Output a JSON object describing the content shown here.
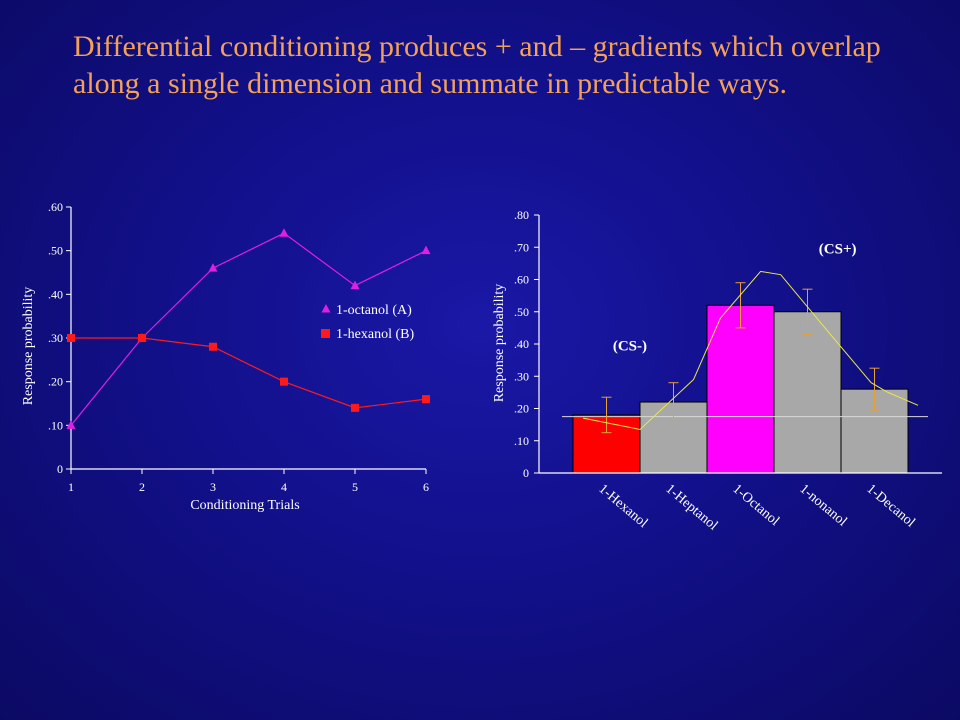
{
  "slide": {
    "title": "Differential conditioning produces + and – gradients which overlap along a single dimension and summate in predictable ways."
  },
  "chart_data": [
    {
      "type": "line",
      "xlabel": "Conditioning Trials",
      "ylabel": "Response probability",
      "x": [
        1,
        2,
        3,
        4,
        5,
        6
      ],
      "x_ticks": [
        "1",
        "2",
        "3",
        "4",
        "5",
        "6"
      ],
      "y_ticks": [
        "0",
        ".10",
        ".20",
        ".30",
        ".40",
        ".50",
        ".60"
      ],
      "ylim": [
        0,
        0.6
      ],
      "legend_position": "right",
      "series": [
        {
          "name": "1-octanol (A)",
          "color": "#e020e0",
          "marker": "triangle",
          "values": [
            0.1,
            0.3,
            0.46,
            0.54,
            0.42,
            0.5
          ]
        },
        {
          "name": "1-hexanol (B)",
          "color": "#ff1a1a",
          "marker": "square",
          "values": [
            0.3,
            0.3,
            0.28,
            0.2,
            0.14,
            0.16
          ]
        }
      ]
    },
    {
      "type": "bar",
      "xlabel": "",
      "ylabel": "Response probability",
      "categories": [
        "1-Hexanol",
        "1-Heptanol",
        "1-Octanol",
        "1-nonanol",
        "1-Decanol"
      ],
      "values": [
        0.18,
        0.22,
        0.52,
        0.5,
        0.26
      ],
      "error": [
        0.055,
        0.06,
        0.07,
        0.07,
        0.065
      ],
      "bar_colors": [
        "#ff0000",
        "#a8a8a8",
        "#ff00ff",
        "#a8a8a8",
        "#a8a8a8"
      ],
      "y_ticks": [
        "0",
        ".10",
        ".20",
        ".30",
        ".40",
        ".50",
        ".60",
        ".70",
        ".80"
      ],
      "ylim": [
        0,
        0.8
      ],
      "baseline": 0.175,
      "curve_color": "#e8e84a",
      "curve": [
        {
          "x": 0.65,
          "y": 0.17
        },
        {
          "x": 1.5,
          "y": 0.135
        },
        {
          "x": 2.3,
          "y": 0.29
        },
        {
          "x": 2.7,
          "y": 0.48
        },
        {
          "x": 3.3,
          "y": 0.625
        },
        {
          "x": 3.6,
          "y": 0.615
        },
        {
          "x": 4.3,
          "y": 0.44
        },
        {
          "x": 4.95,
          "y": 0.28
        },
        {
          "x": 5.2,
          "y": 0.25
        },
        {
          "x": 5.65,
          "y": 0.21
        }
      ],
      "annotations": [
        {
          "text": "(CS-)",
          "x": 1.35,
          "y": 0.38
        },
        {
          "text": "(CS+)",
          "x": 4.45,
          "y": 0.68
        }
      ]
    }
  ]
}
